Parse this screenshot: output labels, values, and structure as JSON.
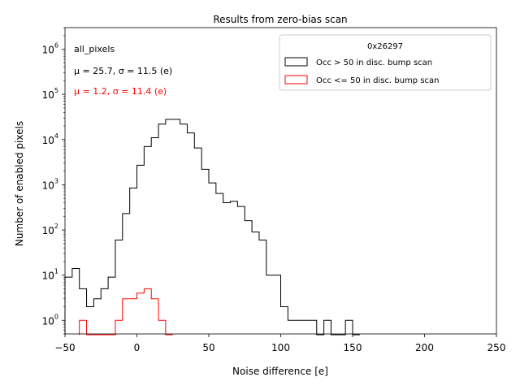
{
  "chart_data": {
    "type": "histogram",
    "title": "Results from zero-bias scan",
    "xlabel": "Noise difference [e]",
    "ylabel": "Number of enabled pixels",
    "xlim": [
      -50,
      250
    ],
    "ylim": [
      0.5,
      3000000
    ],
    "yscale": "log",
    "bin_width": 5,
    "x_ticks": [
      -50,
      0,
      50,
      100,
      150,
      200,
      250
    ],
    "x_tick_labels": [
      "−50",
      "0",
      "50",
      "100",
      "150",
      "200",
      "250"
    ],
    "y_ticks": [
      1,
      10,
      100,
      1000,
      10000,
      100000,
      1000000
    ],
    "y_tick_labels": [
      {
        "base": "10",
        "exp": "0"
      },
      {
        "base": "10",
        "exp": "1"
      },
      {
        "base": "10",
        "exp": "2"
      },
      {
        "base": "10",
        "exp": "3"
      },
      {
        "base": "10",
        "exp": "4"
      },
      {
        "base": "10",
        "exp": "5"
      },
      {
        "base": "10",
        "exp": "6"
      }
    ],
    "legend": {
      "title": "0x26297",
      "placement": "top-right",
      "entries": [
        "Occ > 50 in disc. bump scan",
        "Occ <= 50 in disc. bump scan"
      ]
    },
    "annotations": [
      {
        "text": "all_pixels",
        "color": "#000000"
      },
      {
        "text": "μ = 25.7, σ = 11.5 (e)",
        "color": "#000000"
      },
      {
        "text": "μ = 1.2, σ = 11.4 (e)",
        "color": "#ff0000"
      }
    ],
    "series": [
      {
        "name": "Occ > 50 in disc. bump scan",
        "color": "#000000",
        "bins": [
          [
            -50,
            9
          ],
          [
            -45,
            14
          ],
          [
            -40,
            5
          ],
          [
            -35,
            2
          ],
          [
            -30,
            3
          ],
          [
            -25,
            5
          ],
          [
            -20,
            9
          ],
          [
            -15,
            60
          ],
          [
            -10,
            230
          ],
          [
            -5,
            850
          ],
          [
            0,
            2700
          ],
          [
            5,
            7000
          ],
          [
            10,
            11000
          ],
          [
            15,
            22000
          ],
          [
            20,
            28000
          ],
          [
            25,
            28000
          ],
          [
            30,
            22000
          ],
          [
            35,
            14000
          ],
          [
            40,
            6500
          ],
          [
            45,
            2200
          ],
          [
            50,
            1100
          ],
          [
            55,
            640
          ],
          [
            60,
            400
          ],
          [
            65,
            430
          ],
          [
            70,
            330
          ],
          [
            75,
            160
          ],
          [
            80,
            90
          ],
          [
            85,
            60
          ],
          [
            90,
            10
          ],
          [
            95,
            10
          ],
          [
            100,
            2
          ],
          [
            105,
            1
          ],
          [
            110,
            1
          ],
          [
            115,
            1
          ],
          [
            120,
            1
          ],
          [
            125,
            0
          ],
          [
            130,
            1
          ],
          [
            135,
            0
          ],
          [
            140,
            0
          ],
          [
            145,
            1
          ],
          [
            150,
            0
          ]
        ]
      },
      {
        "name": "Occ <= 50 in disc. bump scan",
        "color": "#ff0000",
        "bins": [
          [
            -40,
            1
          ],
          [
            -35,
            0
          ],
          [
            -30,
            0
          ],
          [
            -25,
            0
          ],
          [
            -20,
            0
          ],
          [
            -15,
            1
          ],
          [
            -10,
            3
          ],
          [
            -5,
            3
          ],
          [
            0,
            4
          ],
          [
            5,
            5
          ],
          [
            10,
            3
          ],
          [
            15,
            1
          ],
          [
            20,
            0
          ]
        ]
      }
    ]
  }
}
